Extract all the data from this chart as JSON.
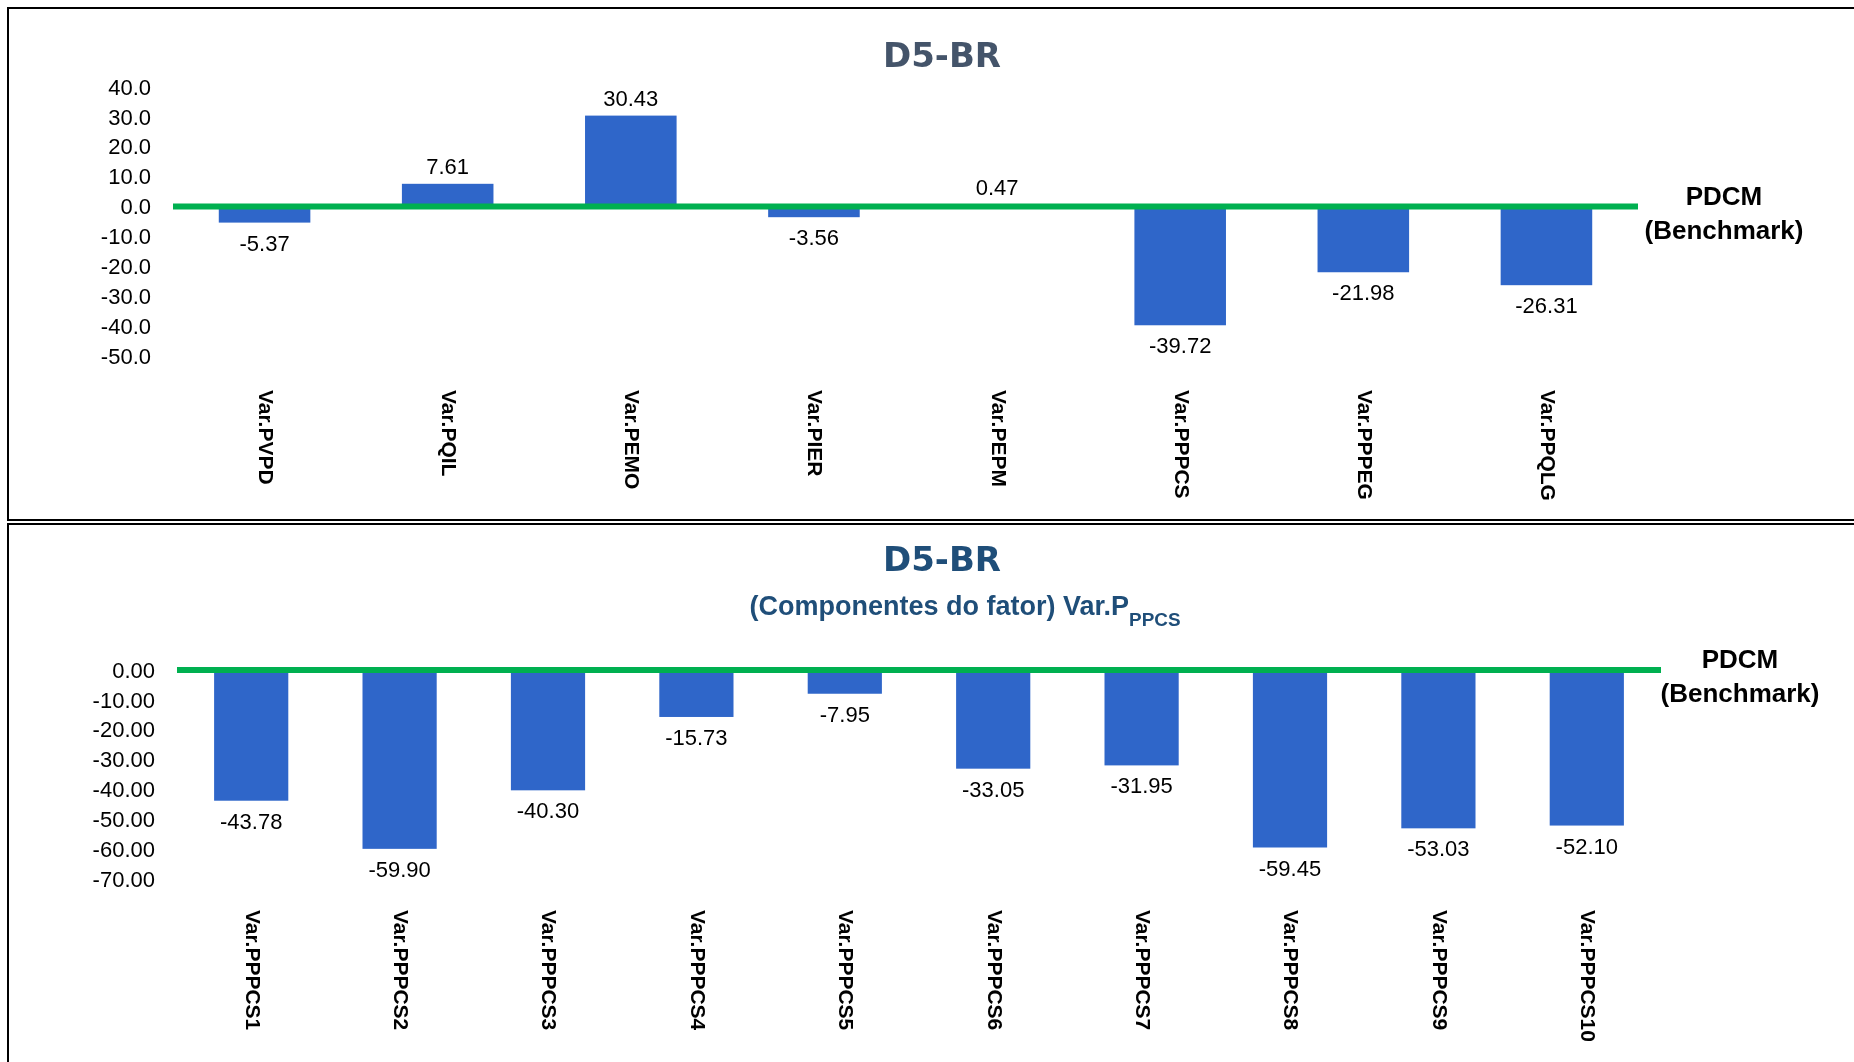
{
  "chart_data": [
    {
      "type": "bar",
      "title": "D5-BR",
      "categories": [
        "Var.PVPD",
        "Var.PQIL",
        "Var.PEMO",
        "Var.PIER",
        "Var.PEPM",
        "Var.PPPCS",
        "Var.PPPEG",
        "Var.PPQLG"
      ],
      "values": [
        -5.37,
        7.61,
        30.43,
        -3.56,
        0.47,
        -39.72,
        -21.98,
        -26.31
      ],
      "value_labels": [
        "-5.37",
        "7.61",
        "30.43",
        "-3.56",
        "0.47",
        "-39.72",
        "-21.98",
        "-26.31"
      ],
      "color": "#2f66c9",
      "ylim": [
        -50,
        40
      ],
      "yticks": [
        {
          "value": 40,
          "label": "40.0"
        },
        {
          "value": 30,
          "label": "30.0"
        },
        {
          "value": 20,
          "label": "20.0"
        },
        {
          "value": 10,
          "label": "10.0"
        },
        {
          "value": 0,
          "label": "0.0"
        },
        {
          "value": -10,
          "label": "-10.0"
        },
        {
          "value": -20,
          "label": "-20.0"
        },
        {
          "value": -30,
          "label": "-30.0"
        },
        {
          "value": -40,
          "label": "-40.0"
        },
        {
          "value": -50,
          "label": "-50.0"
        }
      ],
      "ref_lines": [
        {
          "axis": "y",
          "value": 0,
          "label": "PDCM\n(Benchmark)",
          "color": "#00b050"
        }
      ]
    },
    {
      "type": "bar",
      "title": "D5-BR",
      "subtitle": "(Componentes do fator) Var.P$_{PPCS}$",
      "categories": [
        "Var.PPPCS1",
        "Var.PPPCS2",
        "Var.PPPCS3",
        "Var.PPPCS4",
        "Var.PPPCS5",
        "Var.PPPCS6",
        "Var.PPPCS7",
        "Var.PPPCS8",
        "Var.PPPCS9",
        "Var.PPPCS10"
      ],
      "values": [
        -43.78,
        -59.9,
        -40.3,
        -15.73,
        -7.95,
        -33.05,
        -31.95,
        -59.45,
        -53.03,
        -52.1
      ],
      "value_labels": [
        "-43.78",
        "-59.90",
        "-40.30",
        "-15.73",
        "-7.95",
        "-33.05",
        "-31.95",
        "-59.45",
        "-53.03",
        "-52.10"
      ],
      "color": "#2f66c9",
      "ylim": [
        -70,
        0
      ],
      "yticks": [
        {
          "value": 0,
          "label": "0.00"
        },
        {
          "value": -10,
          "label": "-10.00"
        },
        {
          "value": -20,
          "label": "-20.00"
        },
        {
          "value": -30,
          "label": "-30.00"
        },
        {
          "value": -40,
          "label": "-40.00"
        },
        {
          "value": -50,
          "label": "-50.00"
        },
        {
          "value": -60,
          "label": "-60.00"
        },
        {
          "value": -70,
          "label": "-70.00"
        }
      ],
      "ref_lines": [
        {
          "axis": "y",
          "value": 0,
          "label": "PDCM\n(Benchmark)",
          "color": "#00b050"
        }
      ]
    }
  ]
}
